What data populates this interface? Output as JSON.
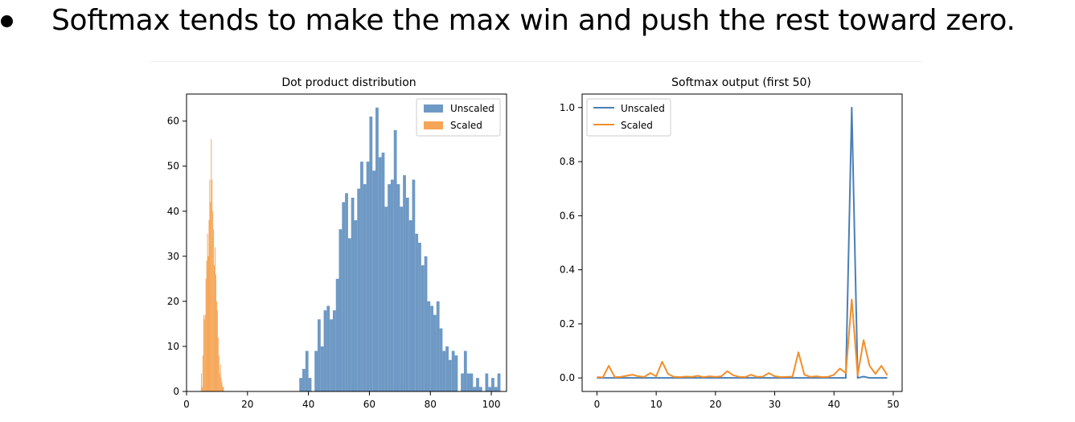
{
  "bullet": {
    "text": "Softmax tends to make the max win and push the rest toward zero."
  },
  "colors": {
    "unscaled": "#4a7fb5",
    "scaled": "#f28e2b",
    "axis": "#000000"
  },
  "chart_data": [
    {
      "type": "bar",
      "title": "Dot product distribution",
      "xlabel": "",
      "ylabel": "",
      "xlim": [
        0,
        105
      ],
      "ylim": [
        0,
        66
      ],
      "xticks": [
        0,
        20,
        40,
        60,
        80,
        100
      ],
      "yticks": [
        0,
        10,
        20,
        30,
        40,
        50,
        60
      ],
      "legend": "top-right",
      "series": [
        {
          "name": "Unscaled",
          "color": "#4a7fb5",
          "bin_width": 1.0,
          "bins": [
            [
              37,
              3
            ],
            [
              38,
              5
            ],
            [
              39,
              9
            ],
            [
              40,
              3
            ],
            [
              41,
              0
            ],
            [
              42,
              9
            ],
            [
              43,
              16
            ],
            [
              44,
              10
            ],
            [
              45,
              18
            ],
            [
              46,
              19
            ],
            [
              47,
              16
            ],
            [
              48,
              18
            ],
            [
              49,
              25
            ],
            [
              50,
              36
            ],
            [
              51,
              42
            ],
            [
              52,
              44
            ],
            [
              53,
              34
            ],
            [
              54,
              43
            ],
            [
              55,
              38
            ],
            [
              56,
              45
            ],
            [
              57,
              51
            ],
            [
              58,
              46
            ],
            [
              59,
              51
            ],
            [
              60,
              61
            ],
            [
              61,
              49
            ],
            [
              62,
              63
            ],
            [
              63,
              52
            ],
            [
              64,
              53
            ],
            [
              65,
              41
            ],
            [
              66,
              46
            ],
            [
              67,
              47
            ],
            [
              68,
              58
            ],
            [
              69,
              46
            ],
            [
              70,
              41
            ],
            [
              71,
              48
            ],
            [
              72,
              43
            ],
            [
              73,
              38
            ],
            [
              74,
              47
            ],
            [
              75,
              35
            ],
            [
              76,
              33
            ],
            [
              77,
              28
            ],
            [
              78,
              30
            ],
            [
              79,
              20
            ],
            [
              80,
              19
            ],
            [
              81,
              17
            ],
            [
              82,
              20
            ],
            [
              83,
              14
            ],
            [
              84,
              9
            ],
            [
              85,
              10
            ],
            [
              86,
              7
            ],
            [
              87,
              9
            ],
            [
              88,
              8
            ],
            [
              89,
              0
            ],
            [
              90,
              4
            ],
            [
              91,
              9
            ],
            [
              92,
              4
            ],
            [
              93,
              4
            ],
            [
              94,
              1
            ],
            [
              95,
              3
            ],
            [
              96,
              1
            ],
            [
              97,
              0
            ],
            [
              98,
              4
            ],
            [
              99,
              1
            ],
            [
              100,
              3
            ],
            [
              101,
              1
            ],
            [
              102,
              4
            ]
          ]
        },
        {
          "name": "Scaled",
          "color": "#f28e2b",
          "bin_width": 0.25,
          "bins": [
            [
              4.75,
              4
            ],
            [
              5.0,
              1
            ],
            [
              5.25,
              8
            ],
            [
              5.5,
              17
            ],
            [
              5.75,
              16
            ],
            [
              6.0,
              17
            ],
            [
              6.25,
              25
            ],
            [
              6.5,
              29
            ],
            [
              6.75,
              35
            ],
            [
              7.0,
              30
            ],
            [
              7.25,
              38
            ],
            [
              7.5,
              47
            ],
            [
              7.75,
              42
            ],
            [
              8.0,
              56
            ],
            [
              8.25,
              47
            ],
            [
              8.5,
              40
            ],
            [
              8.75,
              36
            ],
            [
              9.0,
              28
            ],
            [
              9.25,
              32
            ],
            [
              9.5,
              26
            ],
            [
              9.75,
              20
            ],
            [
              10.0,
              18
            ],
            [
              10.25,
              12
            ],
            [
              10.5,
              8
            ],
            [
              10.75,
              4
            ],
            [
              11.0,
              6
            ],
            [
              11.25,
              3
            ],
            [
              11.5,
              2
            ],
            [
              11.75,
              1
            ],
            [
              12.0,
              1
            ]
          ]
        }
      ]
    },
    {
      "type": "line",
      "title": "Softmax output (first 50)",
      "xlabel": "",
      "ylabel": "",
      "xlim": [
        -2.5,
        51.5
      ],
      "ylim": [
        -0.05,
        1.05
      ],
      "xticks": [
        0,
        10,
        20,
        30,
        40,
        50
      ],
      "yticks": [
        "0.0",
        "0.2",
        "0.4",
        "0.6",
        "0.8",
        "1.0"
      ],
      "legend": "top-left",
      "x": [
        0,
        1,
        2,
        3,
        4,
        5,
        6,
        7,
        8,
        9,
        10,
        11,
        12,
        13,
        14,
        15,
        16,
        17,
        18,
        19,
        20,
        21,
        22,
        23,
        24,
        25,
        26,
        27,
        28,
        29,
        30,
        31,
        32,
        33,
        34,
        35,
        36,
        37,
        38,
        39,
        40,
        41,
        42,
        43,
        44,
        45,
        46,
        47,
        48,
        49
      ],
      "series": [
        {
          "name": "Unscaled",
          "color": "#4a7fb5",
          "values": [
            0,
            0,
            0,
            0,
            0,
            0,
            0,
            0,
            0,
            0,
            0,
            0,
            0,
            0,
            0,
            0,
            0,
            0,
            0,
            0,
            0,
            0,
            0,
            0,
            0,
            0,
            0,
            0,
            0,
            0,
            0,
            0,
            0,
            0,
            0,
            0,
            0,
            0,
            0,
            0,
            0,
            0,
            0,
            1.0,
            0.0,
            0.005,
            0,
            0,
            0,
            0
          ]
        },
        {
          "name": "Scaled",
          "color": "#f28e2b",
          "values": [
            0.003,
            0.002,
            0.045,
            0.003,
            0.004,
            0.008,
            0.012,
            0.006,
            0.004,
            0.018,
            0.006,
            0.06,
            0.015,
            0.004,
            0.003,
            0.005,
            0.004,
            0.008,
            0.003,
            0.006,
            0.004,
            0.006,
            0.025,
            0.01,
            0.004,
            0.003,
            0.012,
            0.004,
            0.005,
            0.018,
            0.006,
            0.003,
            0.004,
            0.005,
            0.095,
            0.012,
            0.004,
            0.006,
            0.003,
            0.004,
            0.012,
            0.035,
            0.018,
            0.29,
            0.01,
            0.14,
            0.045,
            0.015,
            0.045,
            0.01
          ]
        }
      ]
    }
  ]
}
